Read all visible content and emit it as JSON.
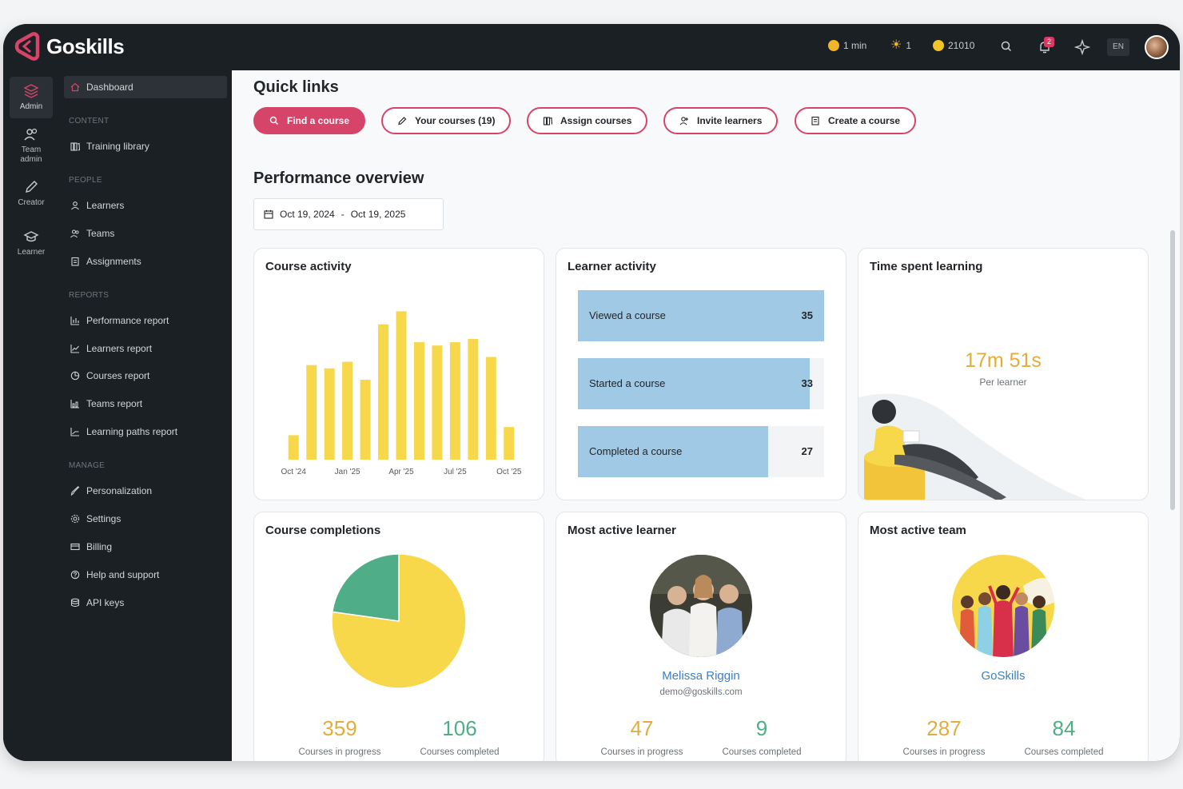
{
  "app": {
    "name": "Goskills"
  },
  "topbar": {
    "timer": "1 min",
    "streak": "1",
    "points": "21010",
    "notifications_count": "2",
    "language": "EN"
  },
  "rail": [
    {
      "label": "Admin"
    },
    {
      "label": "Team admin"
    },
    {
      "label": "Creator"
    },
    {
      "label": "Learner"
    }
  ],
  "nav": {
    "dashboard": "Dashboard",
    "content_head": "CONTENT",
    "training_library": "Training library",
    "people_head": "PEOPLE",
    "learners": "Learners",
    "teams": "Teams",
    "assignments": "Assignments",
    "reports_head": "REPORTS",
    "performance_report": "Performance report",
    "learners_report": "Learners report",
    "courses_report": "Courses report",
    "teams_report": "Teams report",
    "learning_paths_report": "Learning paths report",
    "manage_head": "MANAGE",
    "personalization": "Personalization",
    "settings": "Settings",
    "billing": "Billing",
    "help": "Help and support",
    "api_keys": "API keys"
  },
  "quick_links": {
    "title": "Quick links",
    "find": "Find a course",
    "your_courses": "Your courses (19)",
    "assign": "Assign courses",
    "invite": "Invite learners",
    "create": "Create a course"
  },
  "performance": {
    "title": "Performance overview",
    "date_from": "Oct 19, 2024",
    "date_sep": "-",
    "date_to": "Oct 19, 2025"
  },
  "course_activity": {
    "title": "Course activity"
  },
  "chart_data": {
    "type": "bar",
    "title": "Course activity",
    "categories": [
      "Oct '24",
      "Nov '24",
      "Dec '24",
      "Jan '25",
      "Feb '25",
      "Mar '25",
      "Apr '25",
      "May '25",
      "Jun '25",
      "Jul '25",
      "Aug '25",
      "Sep '25",
      "Oct '25"
    ],
    "tick_labels": [
      "Oct '24",
      "Jan '25",
      "Apr '25",
      "Jul '25",
      "Oct '25"
    ],
    "values": [
      15,
      58,
      56,
      60,
      49,
      83,
      91,
      72,
      70,
      72,
      74,
      63,
      20
    ],
    "ylim": [
      0,
      100
    ],
    "color": "#f7d84a",
    "grid": false
  },
  "learner_activity": {
    "title": "Learner activity",
    "max": 35,
    "rows": [
      {
        "label": "Viewed a course",
        "value": 35
      },
      {
        "label": "Started a course",
        "value": 33
      },
      {
        "label": "Completed a course",
        "value": 27
      }
    ],
    "color": "#9fc9e5"
  },
  "time_spent": {
    "title": "Time spent learning",
    "value": "17m 51s",
    "caption": "Per learner"
  },
  "course_completions": {
    "title": "Course completions",
    "in_progress": "359",
    "in_progress_label": "Courses in progress",
    "completed": "106",
    "completed_label": "Courses completed",
    "pie": {
      "in_progress": 359,
      "completed": 106,
      "colors": [
        "#f7d84a",
        "#4fad88"
      ]
    }
  },
  "most_active_learner": {
    "title": "Most active learner",
    "name": "Melissa Riggin",
    "email": "demo@goskills.com",
    "in_progress": "47",
    "in_progress_label": "Courses in progress",
    "completed": "9",
    "completed_label": "Courses completed"
  },
  "most_active_team": {
    "title": "Most active team",
    "name": "GoSkills",
    "in_progress": "287",
    "in_progress_label": "Courses in progress",
    "completed": "84",
    "completed_label": "Courses completed"
  },
  "colors": {
    "accent": "#d6446a",
    "gold": "#e3ad3b",
    "green": "#4fad88",
    "link": "#3b7fc7"
  }
}
